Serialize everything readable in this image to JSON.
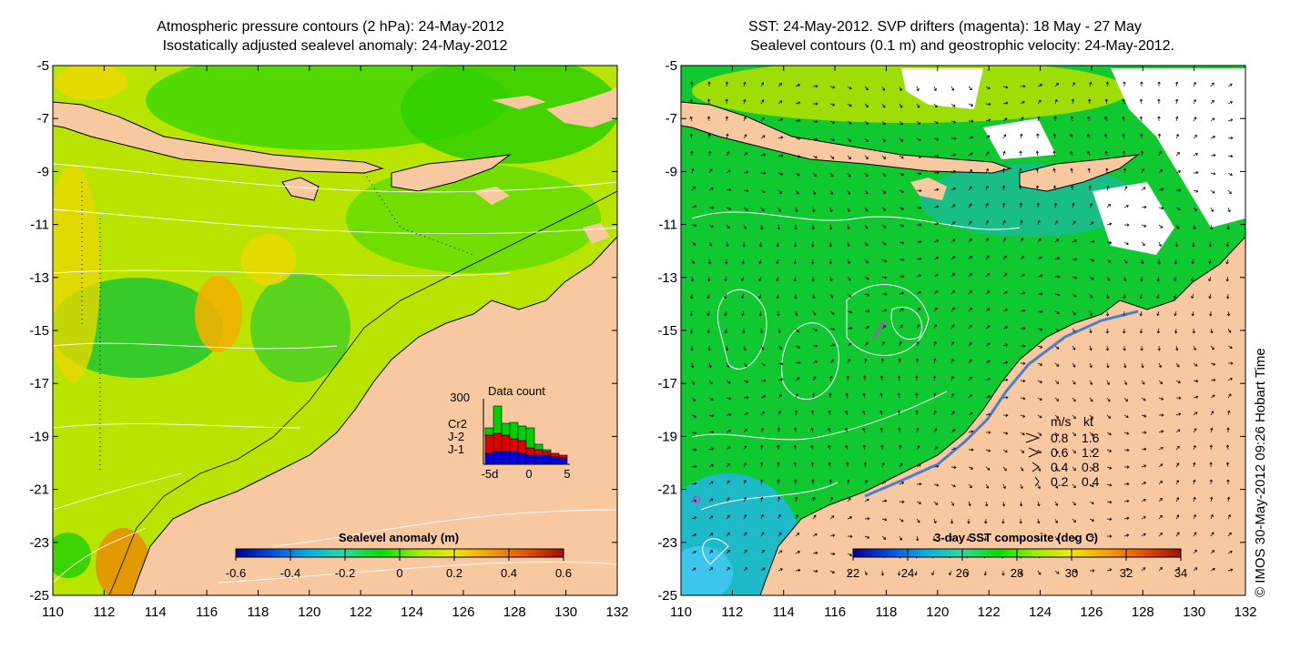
{
  "left_panel": {
    "title_line1": "Atmospheric pressure contours (2 hPa): 24-May-2012",
    "title_line2": "Isostatically adjusted sealevel anomaly: 24-May-2012",
    "colorbar": {
      "title": "Sealevel anomaly (m)",
      "ticks": [
        "-0.6",
        "-0.4",
        "-0.2",
        "0",
        "0.2",
        "0.4",
        "0.6"
      ],
      "colors": [
        "#00008c",
        "#0050e0",
        "#00b4e0",
        "#30d8a0",
        "#00e000",
        "#a0ec00",
        "#f0e800",
        "#f0a000",
        "#e05000",
        "#a01000"
      ]
    },
    "data_count": {
      "title": "Data count",
      "ymax_label": "300",
      "x_ticks": [
        "-5d",
        "0",
        "5"
      ],
      "series": [
        {
          "name": "Cr2",
          "color": "#00d000"
        },
        {
          "name": "J-2",
          "color": "#e00000"
        },
        {
          "name": "J-1",
          "color": "#0000e0"
        }
      ]
    }
  },
  "right_panel": {
    "title_line1": "SST: 24-May-2012. SVP drifters (magenta): 18 May - 27 May",
    "title_line2": "Sealevel contours (0.1 m) and geostrophic velocity: 24-May-2012.",
    "colorbar": {
      "title": "3-day SST composite (deg C)",
      "ticks": [
        "22",
        "24",
        "26",
        "28",
        "30",
        "32",
        "34"
      ],
      "colors": [
        "#00008c",
        "#0050e0",
        "#00b4e0",
        "#30d8a0",
        "#00e000",
        "#a0ec00",
        "#f0e800",
        "#f0a000",
        "#e05000",
        "#a01000"
      ]
    },
    "velocity_legend": {
      "header_ms": "m/s",
      "header_kt": "kt",
      "rows": [
        {
          "ms": "0.8",
          "kt": "1.6"
        },
        {
          "ms": "0.6",
          "kt": "1.2"
        },
        {
          "ms": "0.4",
          "kt": "0.8"
        },
        {
          "ms": "0.2",
          "kt": "0.4"
        }
      ]
    }
  },
  "y_ticks": [
    "-5",
    "-7",
    "-9",
    "-11",
    "-13",
    "-15",
    "-17",
    "-19",
    "-21",
    "-23",
    "-25"
  ],
  "x_ticks": [
    "110",
    "112",
    "114",
    "116",
    "118",
    "120",
    "122",
    "124",
    "126",
    "128",
    "130",
    "132"
  ],
  "credit": "© IMOS 30-May-2012 09:26 Hobart Time",
  "colors": {
    "land": "#f8c8a0",
    "sea_left": "#b8e400",
    "sea_right": "#10c830",
    "drifter": "#d040d0"
  }
}
